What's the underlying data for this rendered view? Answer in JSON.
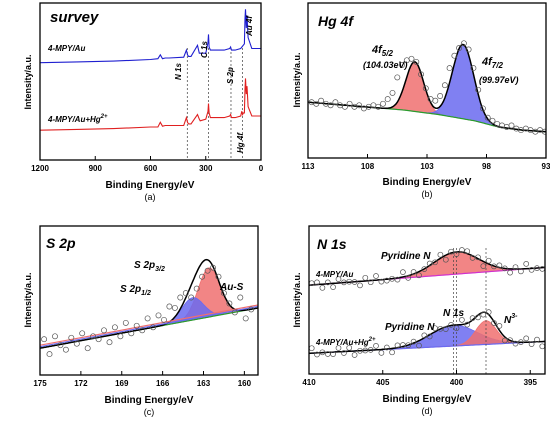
{
  "chart_data": [
    {
      "type": "line",
      "panel_label": "(a)",
      "title": "survey",
      "xlabel": "Binding Energy/eV",
      "ylabel": "Intensity/a.u.",
      "xlim": [
        1200,
        0
      ],
      "x_reversed": true,
      "x_ticks": [
        "1200",
        "900",
        "600",
        "300",
        "0"
      ],
      "ylim": [
        0,
        100
      ],
      "y_ticks_shown": false,
      "grid": false,
      "legend": "inline labels",
      "series": [
        {
          "name": "4-MPY/Au",
          "color": "#1f1fd0",
          "x": [
            1200,
            1000,
            800,
            600,
            560,
            547,
            535,
            520,
            500,
            420,
            405,
            399,
            393,
            380,
            345,
            335,
            330,
            300,
            288,
            285,
            282,
            275,
            200,
            170,
            165,
            160,
            140,
            110,
            90,
            87,
            84,
            80,
            76,
            70,
            50,
            0
          ],
          "y": [
            62,
            62.5,
            63,
            64,
            64.5,
            67,
            64.5,
            65,
            65,
            65.5,
            70,
            67,
            66,
            66,
            73,
            68,
            68,
            68,
            75,
            80,
            72,
            70,
            70,
            71,
            72,
            70,
            70,
            71,
            74,
            90,
            96,
            84,
            92,
            78,
            71,
            71
          ]
        },
        {
          "name": "4-MPY/Au+Hg2+",
          "color": "#e02020",
          "x": [
            1200,
            1000,
            800,
            600,
            560,
            547,
            535,
            520,
            500,
            420,
            405,
            399,
            393,
            380,
            345,
            335,
            330,
            300,
            288,
            285,
            282,
            275,
            200,
            170,
            165,
            160,
            140,
            110,
            104,
            100,
            95,
            90,
            87,
            84,
            80,
            76,
            70,
            50,
            0
          ],
          "y": [
            19,
            19.5,
            20,
            21,
            21,
            24,
            21.5,
            22,
            22,
            22,
            27,
            24,
            23,
            23,
            29,
            26,
            25,
            26,
            31,
            36,
            30,
            27,
            27,
            28,
            29,
            27,
            27,
            28,
            31,
            29,
            30,
            30,
            45,
            52,
            42,
            47,
            34,
            28,
            28
          ]
        }
      ],
      "annotations": [
        "N 1s",
        "C 1s",
        "S 2p",
        "Au 4f",
        "Hg 4f"
      ],
      "reference_lines_x": [
        400,
        285,
        163,
        101
      ]
    },
    {
      "type": "scatter",
      "panel_label": "(b)",
      "title": "Hg 4f",
      "xlabel": "Binding Energy/eV",
      "ylabel": "Intensity/a.u.",
      "xlim": [
        113,
        93
      ],
      "x_reversed": true,
      "x_ticks": [
        "113",
        "108",
        "103",
        "98",
        "93"
      ],
      "ylim": [
        0,
        100
      ],
      "y_ticks_shown": false,
      "grid": false,
      "fit_peaks": [
        {
          "label": "4f5/2",
          "center": 104.03,
          "center_text": "(104.03eV)",
          "height": 32,
          "width": 0.75,
          "color": "#f07070"
        },
        {
          "label": "4f7/2",
          "center": 99.97,
          "center_text": "(99.97eV)",
          "height": 48,
          "width": 0.9,
          "color": "#6a6af0"
        }
      ],
      "background": {
        "x": [
          113,
          105,
          102,
          99,
          97,
          95,
          93
        ],
        "y": [
          36,
          31,
          28,
          24,
          20,
          18,
          17
        ]
      },
      "experimental_points": {
        "x": [
          112.7,
          112.3,
          111.9,
          111.5,
          111.1,
          110.7,
          110.3,
          109.9,
          109.5,
          109.1,
          108.7,
          108.3,
          107.9,
          107.5,
          107.1,
          106.7,
          106.3,
          105.9,
          105.5,
          105.1,
          104.7,
          104.3,
          103.9,
          103.5,
          103.1,
          102.7,
          102.3,
          101.9,
          101.5,
          101.1,
          100.7,
          100.3,
          99.9,
          99.5,
          99.1,
          98.7,
          98.3,
          97.9,
          97.5,
          97.1,
          96.7,
          96.3,
          95.9,
          95.5,
          95.1,
          94.7,
          94.3,
          93.9,
          93.5,
          93.1
        ],
        "y": [
          36,
          35,
          37,
          35,
          34,
          36,
          34,
          33,
          35,
          33,
          34,
          32,
          33,
          34,
          33,
          35,
          38,
          42,
          52,
          60,
          63,
          64,
          62,
          54,
          45,
          38,
          37,
          40,
          47,
          58,
          66,
          71,
          74,
          70,
          58,
          44,
          32,
          26,
          24,
          22,
          21,
          20,
          21,
          19,
          18,
          19,
          18,
          17,
          18,
          17
        ]
      }
    },
    {
      "type": "scatter",
      "panel_label": "(c)",
      "title": "S 2p",
      "xlabel": "Binding Energy/eV",
      "ylabel": "Intensity/a.u.",
      "xlim": [
        175,
        159
      ],
      "x_reversed": true,
      "x_ticks": [
        "175",
        "172",
        "169",
        "166",
        "163",
        "160"
      ],
      "ylim": [
        0,
        100
      ],
      "y_ticks_shown": false,
      "grid": false,
      "fit_peaks": [
        {
          "label": "S 2p3/2",
          "center": 162.6,
          "height": 33,
          "width": 0.8,
          "color": "#f07070"
        },
        {
          "label": "S 2p1/2",
          "center": 163.8,
          "height": 15,
          "width": 0.8,
          "color": "#6a6af0"
        }
      ],
      "background": {
        "x": [
          175,
          159
        ],
        "y": [
          18,
          45
        ]
      },
      "annotations": [
        "S 2p3/2",
        "S 2p1/2",
        "Au-S"
      ],
      "experimental_points": {
        "x": [
          174.7,
          174.3,
          173.9,
          173.5,
          173.1,
          172.7,
          172.3,
          171.9,
          171.5,
          171.1,
          170.7,
          170.3,
          169.9,
          169.5,
          169.1,
          168.7,
          168.3,
          167.9,
          167.5,
          167.1,
          166.7,
          166.3,
          165.9,
          165.5,
          165.1,
          164.7,
          164.3,
          163.9,
          163.5,
          163.1,
          162.7,
          162.3,
          161.9,
          161.5,
          161.1,
          160.7,
          160.3,
          159.9,
          159.5
        ],
        "y": [
          24,
          14,
          26,
          20,
          17,
          25,
          21,
          28,
          18,
          26,
          24,
          30,
          22,
          32,
          26,
          35,
          28,
          33,
          30,
          38,
          32,
          40,
          37,
          46,
          45,
          52,
          55,
          52,
          58,
          66,
          70,
          72,
          66,
          55,
          48,
          42,
          52,
          38,
          44
        ]
      }
    },
    {
      "type": "scatter",
      "panel_label": "(d)",
      "title": "N 1s",
      "xlabel": "Binding Energy/eV",
      "ylabel": "Intensity/a.u.",
      "xlim": [
        410,
        394
      ],
      "x_reversed": true,
      "x_ticks": [
        "410",
        "405",
        "400",
        "395"
      ],
      "ylim": [
        0,
        100
      ],
      "y_ticks_shown": false,
      "grid": false,
      "sub_spectra": [
        {
          "name": "4-MPY/Au",
          "peaks": [
            {
              "label": "Pyridine N",
              "center": 400.0,
              "height": 15,
              "width": 1.5,
              "color": "#f07070"
            }
          ],
          "background": {
            "x": [
              410,
              394
            ],
            "y": [
              60,
              72
            ]
          }
        },
        {
          "name": "4-MPY/Au+Hg2+",
          "peaks": [
            {
              "label": "Pyridine N",
              "center": 400.2,
              "height": 14,
              "width": 1.6,
              "color": "#6a6af0"
            },
            {
              "label": "N3-",
              "center": 398.0,
              "height": 16,
              "width": 0.7,
              "color": "#f07070"
            }
          ],
          "background": {
            "x": [
              410,
              394
            ],
            "y": [
              14,
              22
            ]
          }
        }
      ],
      "annotations": [
        "Pyridine N",
        "Pyridine N",
        "N 1s",
        "N3-"
      ]
    }
  ],
  "labels": {
    "a": {
      "title": "survey",
      "xlabel": "Binding Energy/eV",
      "ylabel": "Intensity/a.u.",
      "panel": "(a)",
      "series1": "4-MPY/Au",
      "series2_main": "4-MPY/Au+Hg",
      "series2_sup": "2+",
      "ann_n1s": "N 1s",
      "ann_c1s": "C 1s",
      "ann_s2p": "S 2p",
      "ann_au4f": "Au 4f",
      "ann_hg4f": "Hg 4f",
      "ticks": [
        "1200",
        "900",
        "600",
        "300",
        "0"
      ]
    },
    "b": {
      "title": "Hg  4f",
      "xlabel": "Binding Energy/eV",
      "ylabel": "Intensity/a.u.",
      "panel": "(b)",
      "peak1_main": "4f",
      "peak1_sub": "5/2",
      "peak1_val": "(104.03eV)",
      "peak2_main": "4f",
      "peak2_sub": "7/2",
      "peak2_val": "(99.97eV)",
      "ticks": [
        "113",
        "108",
        "103",
        "98",
        "93"
      ]
    },
    "c": {
      "title": "S 2p",
      "xlabel": "Binding Energy/eV",
      "ylabel": "Intensity/a.u.",
      "panel": "(c)",
      "p32_main": "S 2p",
      "p32_sub": "3/2",
      "p12_main": "S 2p",
      "p12_sub": "1/2",
      "aus": "Au-S",
      "ticks": [
        "175",
        "172",
        "169",
        "166",
        "163",
        "160"
      ]
    },
    "d": {
      "title": "N 1s",
      "xlabel": "Binding Energy/eV",
      "ylabel": "Intensity/a.u.",
      "panel": "(d)",
      "top_sample": "4-MPY/Au",
      "top_peak": "Pyridine N",
      "bot_sample_main": "4-MPY/Au+Hg",
      "bot_sample_sup": "2+",
      "bot_peak": "Pyridine N",
      "bot_n1s": "N 1s",
      "bot_n3_main": "N",
      "bot_n3_sup": "3-",
      "ticks": [
        "410",
        "405",
        "400",
        "395"
      ]
    }
  },
  "colors": {
    "axis": "#000000",
    "fit_total": "#000000",
    "background_line": "#2a9d2a",
    "baseline_top_d": "#d030d0",
    "peak_red": "#f07070",
    "peak_blue": "#6a6af0",
    "survey_blue": "#1f1fd0",
    "survey_red": "#e02020",
    "points": "#555555"
  }
}
